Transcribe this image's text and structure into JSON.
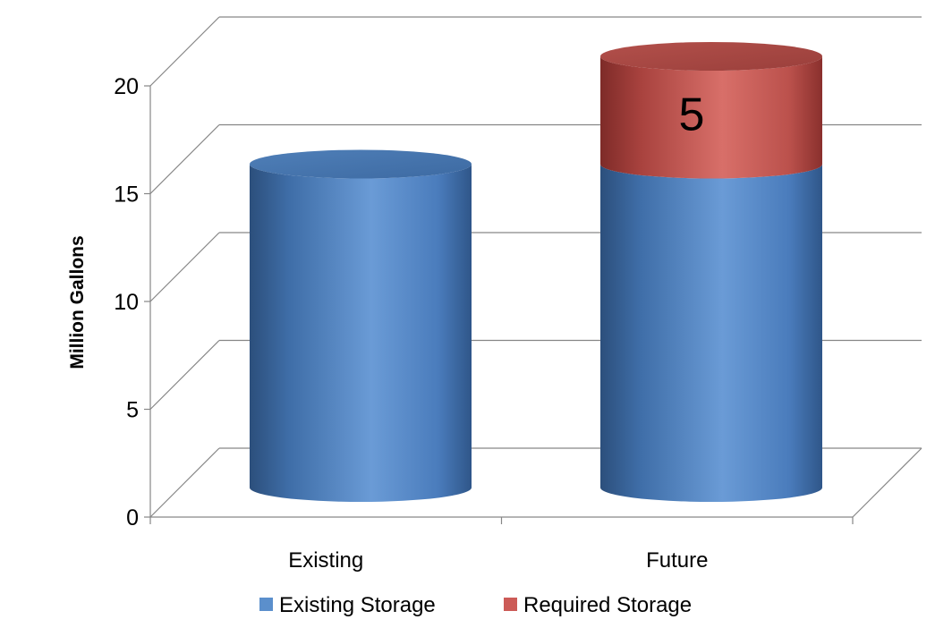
{
  "chart_data": {
    "type": "bar",
    "style": "3d-cylinder-stacked",
    "categories": [
      "Existing",
      "Future"
    ],
    "series": [
      {
        "name": "Existing Storage",
        "values": [
          15,
          15
        ],
        "color": "#5B8FCC",
        "data_labels": [
          "",
          ""
        ]
      },
      {
        "name": "Required Storage",
        "values": [
          0,
          5
        ],
        "color": "#CC5B57",
        "data_labels": [
          "",
          "5"
        ]
      }
    ],
    "ylabel": "Million Gallons",
    "ylim": [
      0,
      20
    ],
    "yticks": [
      0,
      5,
      10,
      15,
      20
    ],
    "ytick_labels": [
      "0",
      "5",
      "10",
      "15",
      "20"
    ],
    "grid": true,
    "legend": "bottom"
  }
}
